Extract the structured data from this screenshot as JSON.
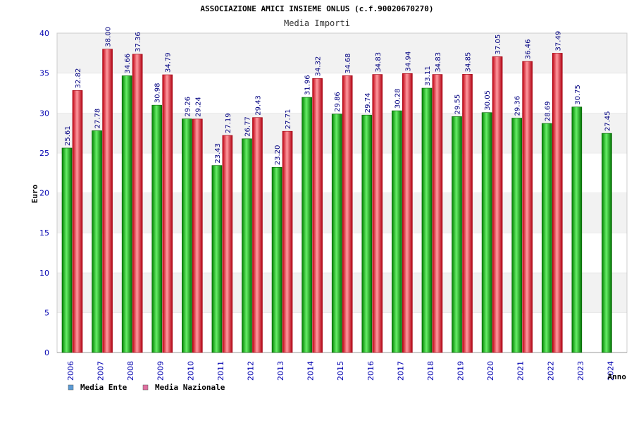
{
  "chart_data": {
    "type": "bar",
    "title": "ASSOCIAZIONE AMICI INSIEME ONLUS (c.f.90020670270)",
    "subtitle": "Media Importi",
    "ylabel": "Euro",
    "xlabel": "Anno",
    "ylim": [
      0,
      40
    ],
    "yticks": [
      0,
      5,
      10,
      15,
      20,
      25,
      30,
      35,
      40
    ],
    "categories": [
      "2006",
      "2007",
      "2008",
      "2009",
      "2010",
      "2011",
      "2012",
      "2013",
      "2014",
      "2015",
      "2016",
      "2017",
      "2018",
      "2019",
      "2020",
      "2021",
      "2022",
      "2023",
      "2024"
    ],
    "series": [
      {
        "name": "Media Ente",
        "color": "#00c000",
        "legend_color": "#5b9bd5",
        "values": [
          25.61,
          27.78,
          34.66,
          30.98,
          29.26,
          23.43,
          26.77,
          23.2,
          31.96,
          29.86,
          29.74,
          30.28,
          33.11,
          29.55,
          30.05,
          29.36,
          28.69,
          30.75,
          27.45
        ],
        "labels": [
          "25.61",
          "27.78",
          "34.66",
          "30.98",
          "29.26",
          "23.43",
          "26.77",
          "23.20",
          "31.96",
          "29.86",
          "29.74",
          "30.28",
          "33.11",
          "29.55",
          "30.05",
          "29.36",
          "28.69",
          "30.75",
          "27.45"
        ]
      },
      {
        "name": "Media Nazionale",
        "color": "#e02030",
        "legend_color": "#e070a0",
        "values": [
          32.82,
          38.0,
          37.36,
          34.79,
          29.24,
          27.19,
          29.43,
          27.71,
          34.32,
          34.68,
          34.83,
          34.94,
          34.83,
          34.85,
          37.05,
          36.46,
          37.49,
          null,
          null
        ],
        "labels": [
          "32.82",
          "38.00",
          "37.36",
          "34.79",
          "29.24",
          "27.19",
          "29.43",
          "27.71",
          "34.32",
          "34.68",
          "34.83",
          "34.94",
          "34.83",
          "34.85",
          "37.05",
          "36.46",
          "37.49",
          null,
          null
        ]
      }
    ],
    "legend_position": "bottom-left",
    "grid": "alternating-bands"
  }
}
